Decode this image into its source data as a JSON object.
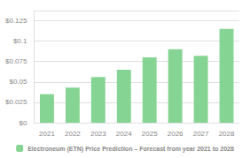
{
  "chart_data": {
    "type": "bar",
    "categories": [
      "2021",
      "2022",
      "2023",
      "2024",
      "2025",
      "2026",
      "2027",
      "2028"
    ],
    "series": [
      {
        "name": "Electroneum (ETN) Price Prediction – Forecast from year 2021 to 2028",
        "color": "#86d494",
        "values": [
          0.035,
          0.043,
          0.056,
          0.065,
          0.08,
          0.09,
          0.082,
          0.115
        ]
      }
    ],
    "ylim": [
      0,
      0.1375
    ],
    "yticks": [
      {
        "value": 0,
        "label": "$0"
      },
      {
        "value": 0.025,
        "label": "$0.025"
      },
      {
        "value": 0.05,
        "label": "$0.05"
      },
      {
        "value": 0.075,
        "label": "$0.075"
      },
      {
        "value": 0.1,
        "label": "$0.1"
      },
      {
        "value": 0.125,
        "label": "$0.125"
      }
    ],
    "grid": true,
    "legend": "bottom"
  }
}
